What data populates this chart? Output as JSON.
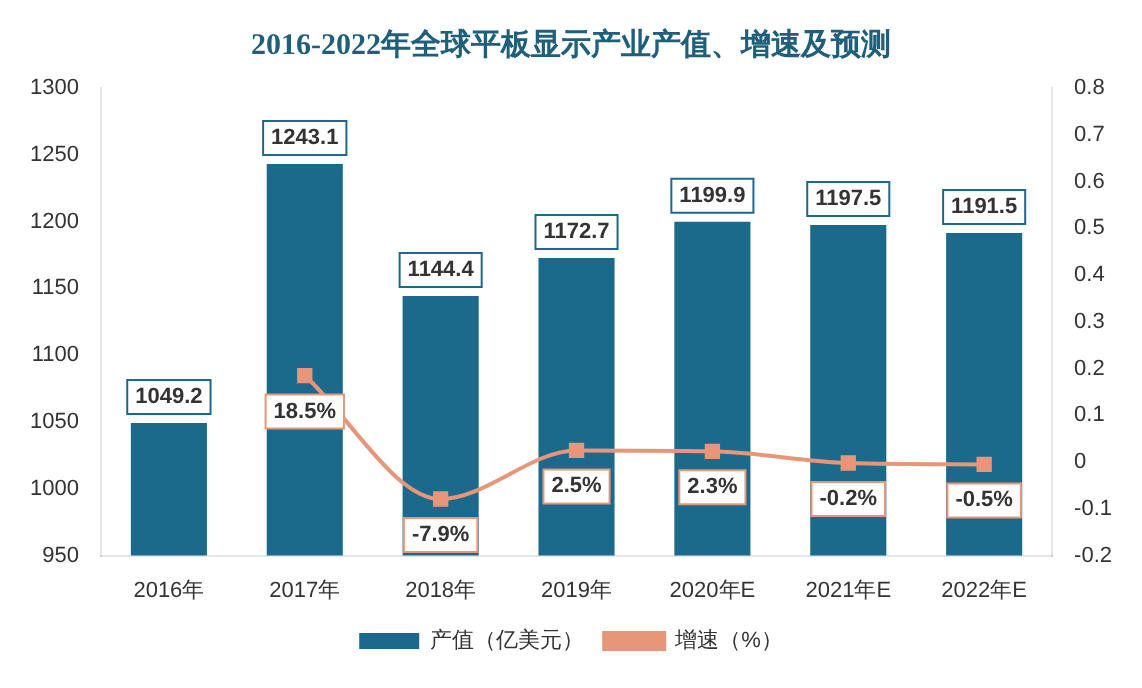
{
  "chart_data": {
    "type": "bar",
    "title": "2016-2022年全球平板显示产业产值、增速及预测",
    "categories": [
      "2016年",
      "2017年",
      "2018年",
      "2019年",
      "2020年E",
      "2021年E",
      "2022年E"
    ],
    "series": [
      {
        "name": "产值（亿美元）",
        "color": "#1b6a8c",
        "values": [
          1049.2,
          1243.1,
          1144.4,
          1172.7,
          1199.9,
          1197.5,
          1191.5
        ],
        "value_labels": [
          "1049.2",
          "1243.1",
          "1144.4",
          "1172.7",
          "1199.9",
          "1197.5",
          "1191.5"
        ]
      },
      {
        "name": "增速（%）",
        "type": "line",
        "axis": "y2",
        "color": "#e8967a",
        "values": [
          null,
          0.185,
          -0.079,
          0.025,
          0.023,
          -0.002,
          -0.005
        ],
        "value_labels": [
          null,
          "18.5%",
          "-7.9%",
          "2.5%",
          "2.3%",
          "-0.2%",
          "-0.5%"
        ]
      }
    ],
    "ylim": [
      950,
      1300
    ],
    "yticks": [
      950,
      1000,
      1050,
      1100,
      1150,
      1200,
      1250,
      1300
    ],
    "y2lim": [
      -0.2,
      0.8
    ],
    "y2ticks": [
      -0.2,
      -0.1,
      0,
      0.1,
      0.2,
      0.3,
      0.4,
      0.5,
      0.6,
      0.7,
      0.8
    ],
    "grid": false,
    "legend": "bottom",
    "marker": "square",
    "line_style": "solid"
  }
}
